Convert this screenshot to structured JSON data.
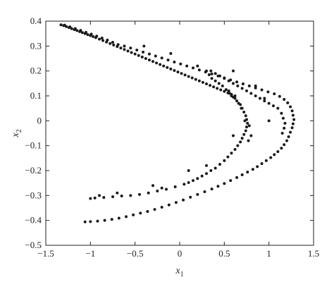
{
  "chart_data": {
    "type": "scatter",
    "title": "",
    "xlabel": "x1",
    "ylabel": "x2",
    "xlabel_parts": {
      "base": "x",
      "sub": "1"
    },
    "ylabel_parts": {
      "base": "x",
      "sub": "2"
    },
    "xlim": [
      -1.5,
      1.5
    ],
    "ylim": [
      -0.5,
      0.4
    ],
    "xticks": [
      -1.5,
      -1,
      -0.5,
      0,
      0.5,
      1,
      1.5
    ],
    "xtick_labels": [
      "−1.5",
      "−1",
      "−0.5",
      "0",
      "0.5",
      "1",
      "1.5"
    ],
    "yticks": [
      -0.5,
      -0.4,
      -0.3,
      -0.2,
      -0.1,
      0,
      0.1,
      0.2,
      0.3,
      0.4
    ],
    "ytick_labels": [
      "−0.5",
      "−0.4",
      "−0.3",
      "−0.2",
      "−0.1",
      "0",
      "0.1",
      "0.2",
      "0.3",
      "0.4"
    ],
    "grid": false,
    "marker_color": "#1a1a1a",
    "series": [
      {
        "name": "",
        "points": [
          [
            -1.33,
            0.385
          ],
          [
            -1.3,
            0.382
          ],
          [
            -1.27,
            0.378
          ],
          [
            -1.24,
            0.374
          ],
          [
            -1.21,
            0.37
          ],
          [
            -1.18,
            0.366
          ],
          [
            -1.15,
            0.362
          ],
          [
            -1.12,
            0.358
          ],
          [
            -1.09,
            0.354
          ],
          [
            -1.06,
            0.35
          ],
          [
            -1.03,
            0.346
          ],
          [
            -1.0,
            0.342
          ],
          [
            -0.97,
            0.338
          ],
          [
            -0.94,
            0.334
          ],
          [
            -0.9,
            0.328
          ],
          [
            -0.86,
            0.322
          ],
          [
            -0.82,
            0.316
          ],
          [
            -0.78,
            0.31
          ],
          [
            -0.74,
            0.304
          ],
          [
            -0.7,
            0.298
          ],
          [
            -0.66,
            0.292
          ],
          [
            -0.62,
            0.286
          ],
          [
            -0.58,
            0.28
          ],
          [
            -0.54,
            0.274
          ],
          [
            -0.5,
            0.268
          ],
          [
            -0.46,
            0.262
          ],
          [
            -0.42,
            0.256
          ],
          [
            -0.38,
            0.25
          ],
          [
            -0.34,
            0.244
          ],
          [
            -0.3,
            0.238
          ],
          [
            -0.26,
            0.232
          ],
          [
            -0.22,
            0.226
          ],
          [
            -0.18,
            0.22
          ],
          [
            -0.14,
            0.214
          ],
          [
            -0.1,
            0.208
          ],
          [
            -0.06,
            0.202
          ],
          [
            -0.02,
            0.196
          ],
          [
            0.02,
            0.19
          ],
          [
            0.06,
            0.184
          ],
          [
            0.1,
            0.178
          ],
          [
            0.14,
            0.172
          ],
          [
            0.18,
            0.166
          ],
          [
            0.22,
            0.16
          ],
          [
            0.26,
            0.154
          ],
          [
            0.3,
            0.148
          ],
          [
            0.34,
            0.142
          ],
          [
            0.38,
            0.136
          ],
          [
            0.42,
            0.13
          ],
          [
            0.46,
            0.124
          ],
          [
            0.5,
            0.118
          ],
          [
            0.54,
            0.112
          ],
          [
            0.58,
            0.106
          ],
          [
            0.62,
            0.1
          ],
          [
            -1.29,
            0.384
          ],
          [
            -1.23,
            0.377
          ],
          [
            -1.17,
            0.37
          ],
          [
            -1.11,
            0.363
          ],
          [
            -1.05,
            0.355
          ],
          [
            -0.99,
            0.348
          ],
          [
            -0.93,
            0.34
          ],
          [
            -0.87,
            0.332
          ],
          [
            -0.81,
            0.324
          ],
          [
            -0.75,
            0.315
          ],
          [
            -0.69,
            0.306
          ],
          [
            -0.62,
            0.3
          ],
          [
            -0.55,
            0.292
          ],
          [
            -0.48,
            0.284
          ],
          [
            -0.41,
            0.276
          ],
          [
            -0.34,
            0.268
          ],
          [
            -0.27,
            0.26
          ],
          [
            -0.2,
            0.252
          ],
          [
            -0.13,
            0.244
          ],
          [
            -0.06,
            0.236
          ],
          [
            0.01,
            0.228
          ],
          [
            0.08,
            0.22
          ],
          [
            0.15,
            0.212
          ],
          [
            0.22,
            0.204
          ],
          [
            0.29,
            0.196
          ],
          [
            0.36,
            0.188
          ],
          [
            0.43,
            0.18
          ],
          [
            0.5,
            0.172
          ],
          [
            0.57,
            0.164
          ],
          [
            0.64,
            0.156
          ],
          [
            0.71,
            0.148
          ],
          [
            0.78,
            0.14
          ],
          [
            0.85,
            0.132
          ],
          [
            0.92,
            0.124
          ],
          [
            0.99,
            0.116
          ],
          [
            1.06,
            0.108
          ],
          [
            1.12,
            0.098
          ],
          [
            1.17,
            0.086
          ],
          [
            1.21,
            0.072
          ],
          [
            1.24,
            0.056
          ],
          [
            1.26,
            0.04
          ],
          [
            1.27,
            0.022
          ],
          [
            1.28,
            0.005
          ],
          [
            1.27,
            -0.012
          ],
          [
            1.26,
            -0.028
          ],
          [
            1.24,
            -0.046
          ],
          [
            1.22,
            -0.064
          ],
          [
            1.2,
            -0.08
          ],
          [
            1.17,
            -0.096
          ],
          [
            1.14,
            -0.11
          ],
          [
            1.1,
            -0.124
          ],
          [
            1.06,
            -0.136
          ],
          [
            1.02,
            -0.148
          ],
          [
            0.97,
            -0.16
          ],
          [
            0.92,
            -0.172
          ],
          [
            0.87,
            -0.184
          ],
          [
            0.82,
            -0.195
          ],
          [
            0.76,
            -0.206
          ],
          [
            0.7,
            -0.217
          ],
          [
            0.64,
            -0.228
          ],
          [
            0.57,
            -0.24
          ],
          [
            0.5,
            -0.252
          ],
          [
            0.43,
            -0.263
          ],
          [
            0.36,
            -0.274
          ],
          [
            0.28,
            -0.285
          ],
          [
            0.2,
            -0.296
          ],
          [
            0.12,
            -0.307
          ],
          [
            0.04,
            -0.318
          ],
          [
            -0.04,
            -0.328
          ],
          [
            -0.12,
            -0.338
          ],
          [
            -0.2,
            -0.347
          ],
          [
            -0.28,
            -0.356
          ],
          [
            -0.36,
            -0.364
          ],
          [
            -0.44,
            -0.371
          ],
          [
            -0.52,
            -0.378
          ],
          [
            -0.6,
            -0.385
          ],
          [
            -0.68,
            -0.391
          ],
          [
            -0.76,
            -0.396
          ],
          [
            -0.84,
            -0.4
          ],
          [
            -0.92,
            -0.403
          ],
          [
            -1.0,
            -0.405
          ],
          [
            -1.06,
            -0.406
          ],
          [
            0.35,
            0.2
          ],
          [
            0.4,
            0.19
          ],
          [
            0.45,
            0.18
          ],
          [
            0.5,
            0.17
          ],
          [
            0.55,
            0.16
          ],
          [
            0.6,
            0.15
          ],
          [
            0.65,
            0.14
          ],
          [
            0.7,
            0.13
          ],
          [
            0.75,
            0.12
          ],
          [
            0.8,
            0.11
          ],
          [
            0.85,
            0.1
          ],
          [
            0.9,
            0.09
          ],
          [
            0.95,
            0.08
          ],
          [
            1.0,
            0.07
          ],
          [
            1.05,
            0.06
          ],
          [
            1.1,
            0.05
          ],
          [
            1.14,
            0.03
          ],
          [
            1.16,
            0.01
          ],
          [
            1.18,
            -0.01
          ],
          [
            1.17,
            -0.03
          ],
          [
            1.15,
            -0.05
          ],
          [
            0.3,
            0.2
          ],
          [
            0.33,
            0.185
          ],
          [
            0.36,
            0.17
          ],
          [
            0.4,
            0.16
          ],
          [
            0.44,
            0.15
          ],
          [
            0.48,
            0.14
          ],
          [
            0.52,
            0.125
          ],
          [
            0.56,
            0.11
          ],
          [
            0.6,
            0.095
          ],
          [
            0.64,
            0.08
          ],
          [
            0.68,
            0.065
          ],
          [
            0.7,
            0.05
          ],
          [
            0.72,
            0.035
          ],
          [
            0.74,
            0.02
          ],
          [
            0.75,
            0.005
          ],
          [
            0.76,
            -0.01
          ],
          [
            0.75,
            -0.025
          ],
          [
            0.74,
            -0.04
          ],
          [
            0.72,
            -0.055
          ],
          [
            0.7,
            -0.07
          ],
          [
            0.68,
            -0.085
          ],
          [
            0.65,
            -0.1
          ],
          [
            0.62,
            -0.115
          ],
          [
            0.58,
            -0.13
          ],
          [
            0.54,
            -0.145
          ],
          [
            0.5,
            -0.16
          ],
          [
            0.45,
            -0.175
          ],
          [
            0.4,
            -0.19
          ],
          [
            0.35,
            -0.2
          ],
          [
            0.3,
            -0.212
          ],
          [
            0.25,
            -0.222
          ],
          [
            0.2,
            -0.232
          ],
          [
            0.15,
            -0.24
          ],
          [
            0.1,
            -0.248
          ],
          [
            0.05,
            -0.255
          ],
          [
            -0.05,
            -0.265
          ],
          [
            -0.15,
            -0.275
          ],
          [
            -0.25,
            -0.282
          ],
          [
            -0.35,
            -0.29
          ],
          [
            -0.45,
            -0.296
          ],
          [
            -0.55,
            -0.3
          ],
          [
            -0.65,
            -0.302
          ],
          [
            -0.75,
            -0.305
          ],
          [
            -0.85,
            -0.308
          ],
          [
            -0.95,
            -0.31
          ],
          [
            -1.0,
            -0.312
          ],
          [
            0.55,
            0.12
          ],
          [
            0.58,
            0.1
          ],
          [
            0.62,
            0.09
          ],
          [
            0.66,
            0.07
          ],
          [
            0.69,
            0.05
          ],
          [
            0.73,
            0.0
          ],
          [
            0.78,
            -0.02
          ],
          [
            0.8,
            -0.06
          ],
          [
            0.77,
            -0.08
          ],
          [
            1.0,
            0.0
          ],
          [
            0.95,
            0.09
          ],
          [
            0.85,
            0.14
          ],
          [
            0.6,
            0.2
          ],
          [
            0.2,
            0.22
          ],
          [
            -0.1,
            0.27
          ],
          [
            -0.4,
            0.3
          ],
          [
            -0.2,
            -0.27
          ],
          [
            -0.3,
            -0.26
          ],
          [
            -0.7,
            -0.29
          ],
          [
            -0.9,
            -0.3
          ],
          [
            0.1,
            -0.2
          ],
          [
            0.3,
            -0.18
          ],
          [
            0.6,
            -0.06
          ]
        ]
      }
    ]
  }
}
